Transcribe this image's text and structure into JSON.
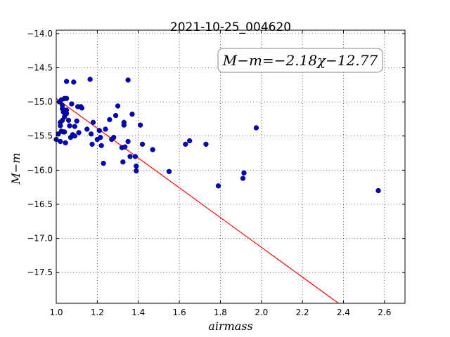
{
  "chart_data": {
    "type": "scatter",
    "title": "2021-10-25_004620",
    "xlabel": "airmass",
    "ylabel": "M−m",
    "xlim": [
      1.0,
      2.7
    ],
    "ylim": [
      -17.95,
      -13.95
    ],
    "xticks": [
      "1.0",
      "1.2",
      "1.4",
      "1.6",
      "1.8",
      "2.0",
      "2.2",
      "2.4",
      "2.6"
    ],
    "yticks": [
      "−14.0",
      "−14.5",
      "−15.0",
      "−15.5",
      "−16.0",
      "−16.5",
      "−17.0",
      "−17.5"
    ],
    "grid": true,
    "annotation": "M−m=−2.18χ−12.77",
    "fit_line": {
      "slope": -2.18,
      "intercept": -12.77,
      "color": "#ff0000"
    },
    "point_color": "#0000cc",
    "points": [
      [
        1.0,
        -15.55
      ],
      [
        1.01,
        -15.47
      ],
      [
        1.015,
        -15.0
      ],
      [
        1.02,
        -15.3
      ],
      [
        1.02,
        -15.35
      ],
      [
        1.02,
        -15.58
      ],
      [
        1.025,
        -14.97
      ],
      [
        1.025,
        -15.43
      ],
      [
        1.03,
        -15.05
      ],
      [
        1.03,
        -15.1
      ],
      [
        1.03,
        -15.27
      ],
      [
        1.035,
        -15.15
      ],
      [
        1.035,
        -15.44
      ],
      [
        1.04,
        -14.95
      ],
      [
        1.04,
        -15.22
      ],
      [
        1.04,
        -15.44
      ],
      [
        1.045,
        -15.6
      ],
      [
        1.05,
        -14.95
      ],
      [
        1.05,
        -15.12
      ],
      [
        1.05,
        -15.17
      ],
      [
        1.05,
        -14.7
      ],
      [
        1.06,
        -15.27
      ],
      [
        1.065,
        -15.35
      ],
      [
        1.07,
        -15.52
      ],
      [
        1.075,
        -15.03
      ],
      [
        1.08,
        -15.48
      ],
      [
        1.085,
        -14.71
      ],
      [
        1.09,
        -15.36
      ],
      [
        1.09,
        -15.5
      ],
      [
        1.1,
        -15.28
      ],
      [
        1.105,
        -15.07
      ],
      [
        1.11,
        -15.45
      ],
      [
        1.12,
        -15.07
      ],
      [
        1.125,
        -15.09
      ],
      [
        1.15,
        -15.4
      ],
      [
        1.165,
        -14.67
      ],
      [
        1.17,
        -15.47
      ],
      [
        1.175,
        -15.62
      ],
      [
        1.18,
        -15.3
      ],
      [
        1.2,
        -15.55
      ],
      [
        1.21,
        -15.42
      ],
      [
        1.215,
        -15.52
      ],
      [
        1.22,
        -15.64
      ],
      [
        1.23,
        -15.9
      ],
      [
        1.24,
        -15.4
      ],
      [
        1.26,
        -15.26
      ],
      [
        1.27,
        -15.55
      ],
      [
        1.28,
        -15.52
      ],
      [
        1.29,
        -15.2
      ],
      [
        1.3,
        -15.06
      ],
      [
        1.32,
        -15.67
      ],
      [
        1.325,
        -15.88
      ],
      [
        1.33,
        -15.3
      ],
      [
        1.33,
        -15.34
      ],
      [
        1.335,
        -15.66
      ],
      [
        1.35,
        -15.58
      ],
      [
        1.35,
        -14.68
      ],
      [
        1.36,
        -15.8
      ],
      [
        1.37,
        -15.18
      ],
      [
        1.385,
        -15.8
      ],
      [
        1.39,
        -16.01
      ],
      [
        1.39,
        -15.94
      ],
      [
        1.41,
        -15.34
      ],
      [
        1.42,
        -15.62
      ],
      [
        1.47,
        -15.7
      ],
      [
        1.55,
        -16.02
      ],
      [
        1.63,
        -15.62
      ],
      [
        1.65,
        -15.57
      ],
      [
        1.73,
        -15.62
      ],
      [
        1.79,
        -16.23
      ],
      [
        1.91,
        -16.12
      ],
      [
        1.915,
        -16.04
      ],
      [
        1.975,
        -15.38
      ],
      [
        2.57,
        -16.3
      ]
    ]
  }
}
